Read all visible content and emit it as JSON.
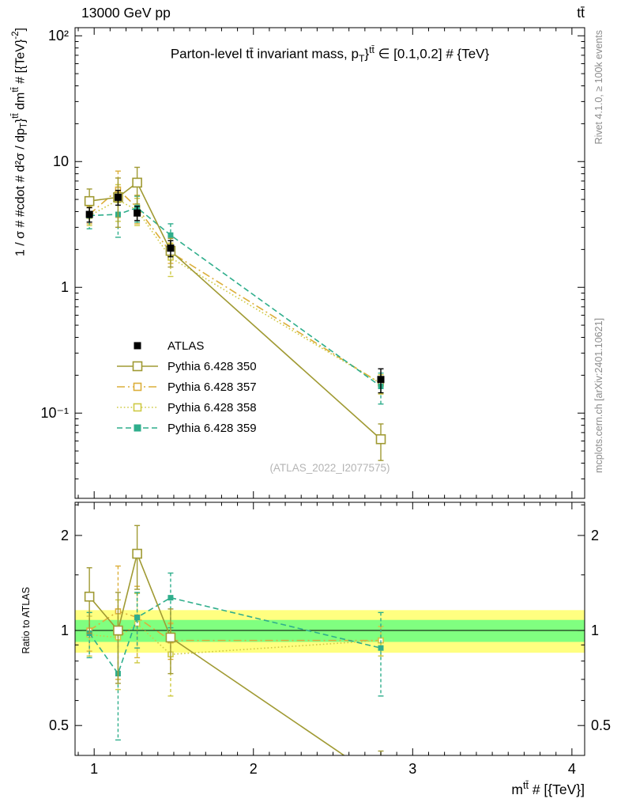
{
  "header": {
    "left": "13000 GeV pp",
    "right": "tt̄"
  },
  "side_notes": {
    "top": "Rivet 4.1.0, ≥ 100k events",
    "bottom": "mcplots.cern.ch [arXiv:2401.10621]"
  },
  "watermark": "(ATLAS_2022_I2077575)",
  "chart_data": {
    "type": "line",
    "title": "Parton-level tt̄ invariant mass, p_{T}}^{tt̄} ∈ [0.1,0.2] # {TeV}",
    "xlabel": "m^{tt̄} # [{TeV}]",
    "ylabel": "1 / σ # #cdot # d²σ / dp_{T}}^{tt̄} dm^{tt̄} # [{TeV}^{-2}]",
    "ratio_ylabel": "Ratio to ATLAS",
    "grid": false,
    "legend_position": "left-center",
    "x_range": [
      0.88,
      4.08
    ],
    "x_ticks": [
      1,
      2,
      3,
      4
    ],
    "x_minor_step": 0.1,
    "y_scale": "log",
    "y_range_main": [
      0.021,
      116
    ],
    "y_ticks_main": [
      {
        "v": 100,
        "label": "10²"
      },
      {
        "v": 10,
        "label": "10"
      },
      {
        "v": 1,
        "label": "1"
      },
      {
        "v": 0.1,
        "label": "10⁻¹"
      }
    ],
    "y_range_ratio": [
      0.402,
      2.547
    ],
    "y_ticks_ratio": [
      {
        "v": 2,
        "label": "2"
      },
      {
        "v": 1,
        "label": "1"
      },
      {
        "v": 0.5,
        "label": "0.5"
      }
    ],
    "ratio_minor_ticks": [
      0.6,
      0.7,
      0.8,
      0.9,
      1.5,
      2.5
    ],
    "bands": [
      {
        "name": "atlas-uncertainty-outer",
        "lo": 0.85,
        "hi": 1.16,
        "color": "#ffff80"
      },
      {
        "name": "atlas-uncertainty-inner",
        "lo": 0.92,
        "hi": 1.08,
        "color": "#80ff80"
      }
    ],
    "x": [
      0.97,
      1.15,
      1.27,
      1.48,
      2.8
    ],
    "series": [
      {
        "name": "ATLAS",
        "color": "#000000",
        "marker": "square-filled",
        "marker_size": 9,
        "dash": null,
        "is_reference": true,
        "y": [
          3.8,
          5.2,
          3.9,
          2.05,
          0.185
        ],
        "yerr": [
          0.5,
          0.7,
          0.5,
          0.3,
          0.04
        ],
        "ratio": null,
        "ratio_err": null
      },
      {
        "name": "Pythia 6.428 350",
        "color": "#a09a33",
        "marker": "square-open",
        "marker_size": 11,
        "dash": "",
        "is_reference": false,
        "y": [
          4.85,
          5.2,
          6.8,
          1.95,
          0.062
        ],
        "yerr": [
          1.2,
          2.2,
          2.2,
          0.5,
          0.02
        ],
        "ratio": [
          1.28,
          1.0,
          1.75,
          0.95,
          0.335
        ],
        "ratio_err": [
          0.3,
          0.32,
          0.4,
          0.22,
          0.08
        ]
      },
      {
        "name": "Pythia 6.428 357",
        "color": "#dcaf3a",
        "marker": "square-open",
        "marker_size": 6,
        "dash": "10 4 2 4",
        "is_reference": false,
        "y": [
          3.8,
          6.0,
          4.3,
          1.9,
          0.172
        ],
        "yerr": [
          0.6,
          2.4,
          1.1,
          0.35,
          0.03
        ],
        "ratio": [
          1.0,
          1.15,
          1.1,
          0.93,
          0.93
        ],
        "ratio_err": [
          0.14,
          0.45,
          0.28,
          0.12,
          0.1
        ]
      },
      {
        "name": "Pythia 6.428 358",
        "color": "#cfca45",
        "marker": "square-open",
        "marker_size": 6,
        "dash": "1.6 2.8",
        "is_reference": false,
        "y": [
          3.7,
          4.95,
          4.1,
          1.72,
          0.172
        ],
        "yerr": [
          0.6,
          1.6,
          1.0,
          0.5,
          0.03
        ],
        "ratio": [
          0.97,
          0.95,
          1.05,
          0.84,
          0.93
        ],
        "ratio_err": [
          0.14,
          0.3,
          0.26,
          0.22,
          0.1
        ]
      },
      {
        "name": "Pythia 6.428 359",
        "color": "#2fae8c",
        "marker": "square-filled",
        "marker_size": 7,
        "dash": "7 4",
        "is_reference": false,
        "y": [
          3.72,
          3.8,
          4.3,
          2.6,
          0.163
        ],
        "yerr": [
          0.8,
          1.3,
          1.0,
          0.6,
          0.045
        ],
        "ratio": [
          0.98,
          0.73,
          1.1,
          1.27,
          0.88
        ],
        "ratio_err": [
          0.16,
          0.28,
          0.22,
          0.25,
          0.26
        ]
      }
    ]
  }
}
